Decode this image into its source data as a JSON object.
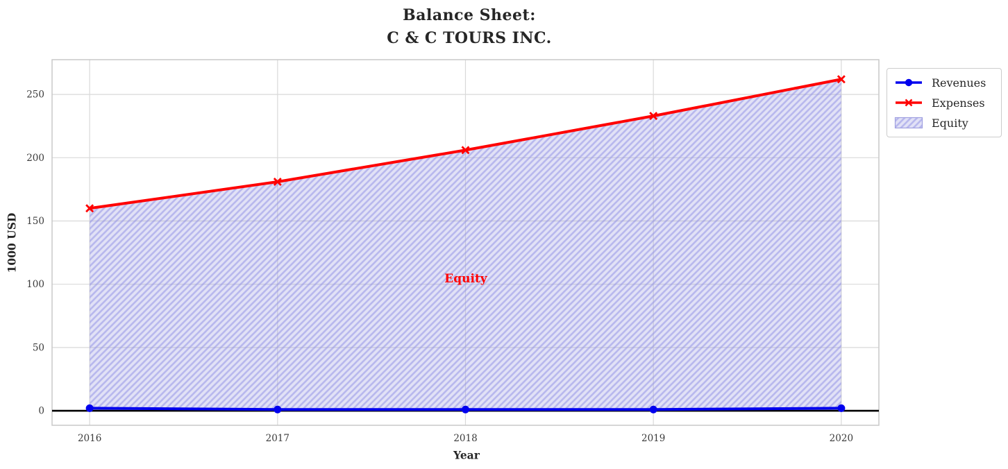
{
  "title": "Balance Sheet:\nC & C TOURS INC.",
  "chart_data": {
    "type": "area",
    "title": "Balance Sheet:\nC & C TOURS INC.",
    "xlabel": "Year",
    "ylabel": "1000 USD",
    "x": [
      2016,
      2017,
      2018,
      2019,
      2020
    ],
    "series": [
      {
        "name": "Revenues",
        "values": [
          2,
          1,
          1,
          1,
          2
        ],
        "color": "#0000ee",
        "marker": "circle"
      },
      {
        "name": "Expenses",
        "values": [
          160,
          181,
          206,
          233,
          262
        ],
        "color": "#ff0000",
        "marker": "x"
      }
    ],
    "fill_between": {
      "label": "Equity",
      "upper_series": "Expenses",
      "lower_series": "Revenues",
      "face_color": "#8888dd",
      "hatch_color": "#8f8fe6",
      "hatch_style": "///"
    },
    "annotation": {
      "text": "Equity",
      "color": "#ff0000",
      "x": 2018,
      "y": 100
    },
    "xticks": [
      2016,
      2017,
      2018,
      2019,
      2020
    ],
    "yticks": [
      0,
      50,
      100,
      150,
      200,
      250
    ],
    "xlim": [
      2015.8,
      2020.2
    ],
    "ylim": [
      -11.5,
      277.5
    ],
    "grid": true,
    "grid_color": "#d9d9d9",
    "border_color": "#c8c8c8",
    "zero_line": true,
    "zero_line_color": "#000000",
    "legend_position": "outside-top-right",
    "legend_entries": [
      "Revenues",
      "Expenses",
      "Equity"
    ]
  }
}
